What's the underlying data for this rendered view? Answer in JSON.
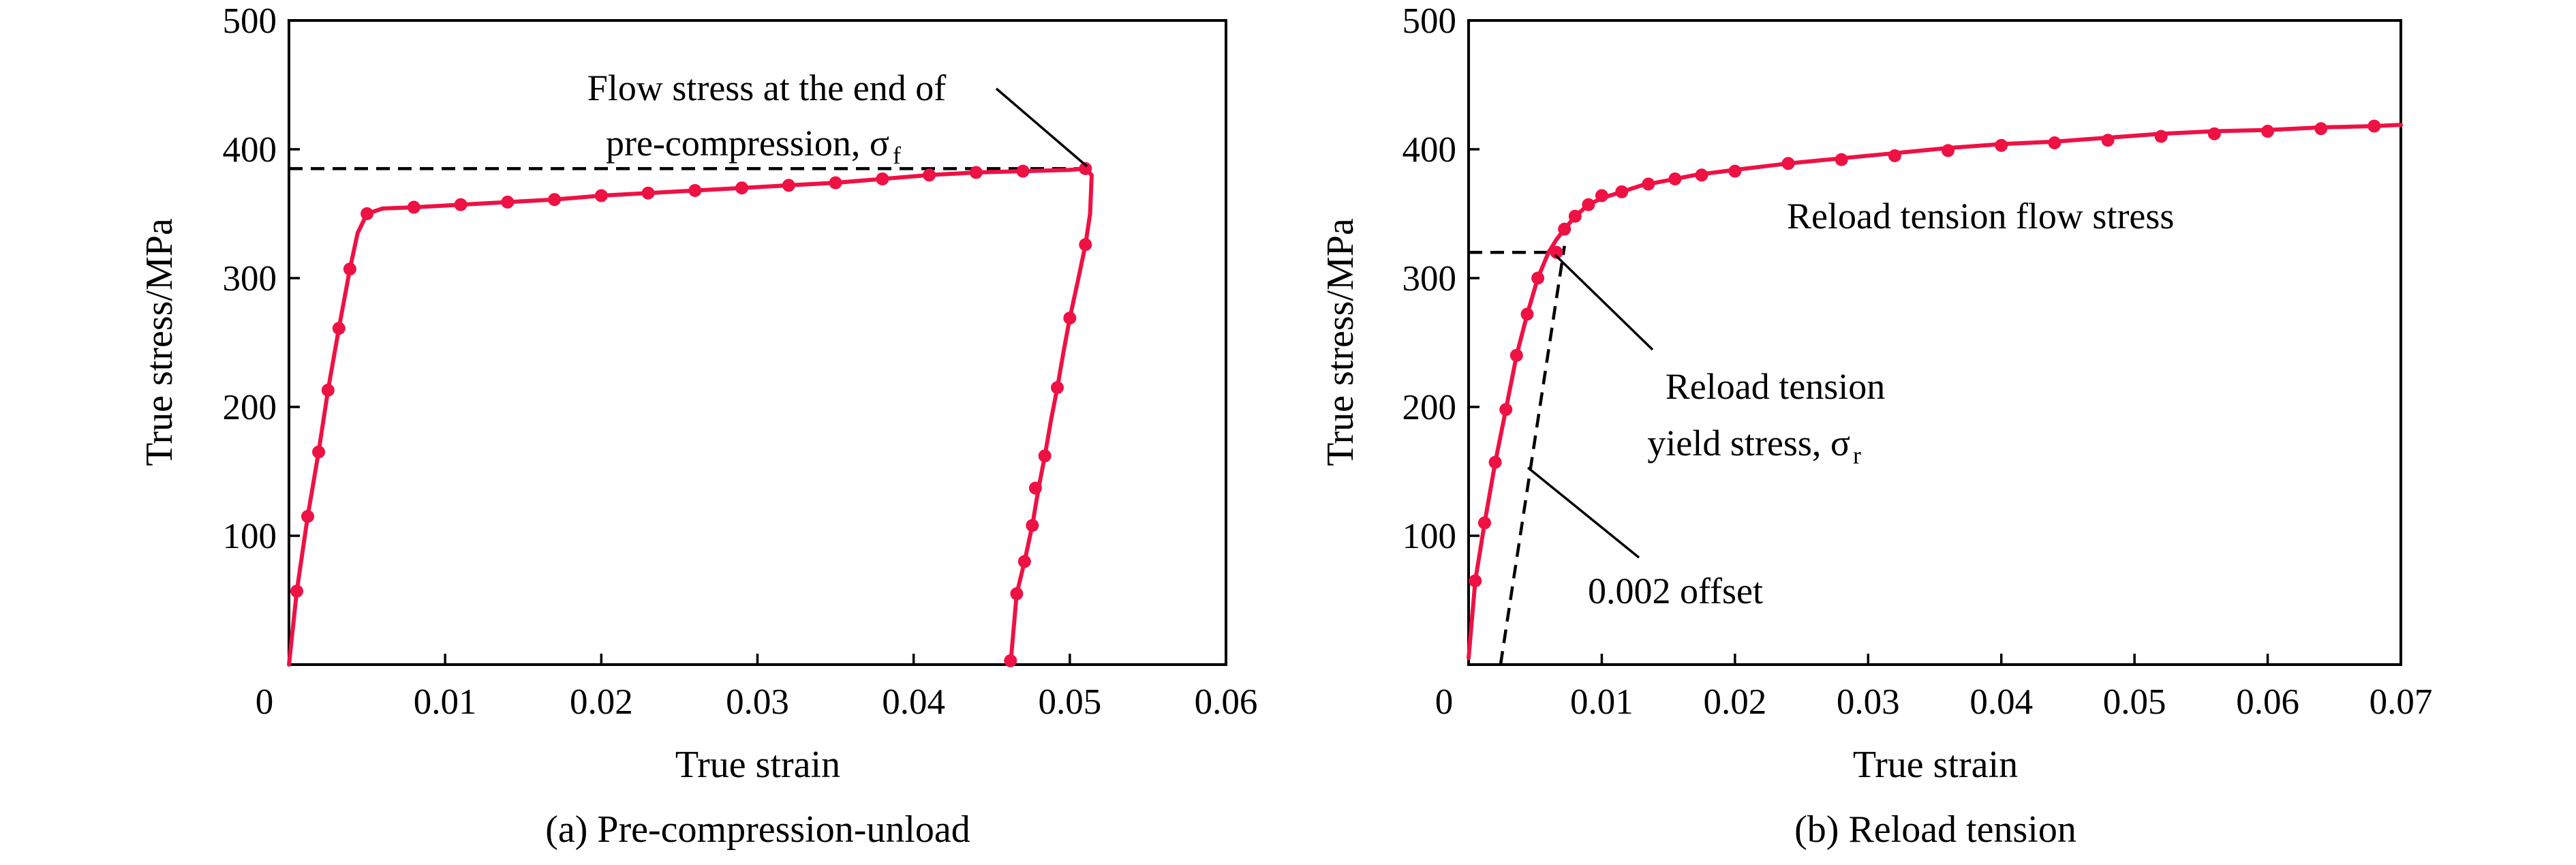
{
  "colors": {
    "curve": "#ee1144",
    "marker": "#ee1144",
    "axis": "#000000",
    "guide": "#000000"
  },
  "chart_data": [
    {
      "type": "line",
      "caption": "(a) Pre-compression-unload",
      "xlabel": "True strain",
      "ylabel": "True stress/MPa",
      "xlim": [
        0,
        0.06
      ],
      "ylim": [
        0,
        500
      ],
      "xticks": [
        "0",
        "0.01",
        "0.02",
        "0.03",
        "0.04",
        "0.05",
        "0.06"
      ],
      "yticks": [
        "100",
        "200",
        "300",
        "400",
        "500"
      ],
      "grid": false,
      "series": [
        {
          "x": [
            0,
            0.0005,
            0.0012,
            0.0019,
            0.0025,
            0.0032,
            0.0039,
            0.0044,
            0.005,
            0.006,
            0.008,
            0.011,
            0.014,
            0.017,
            0.02,
            0.023,
            0.026,
            0.029,
            0.032,
            0.035,
            0.038,
            0.041,
            0.044,
            0.047,
            0.05,
            0.051,
            0.0514,
            0.0513,
            0.051,
            0.0505,
            0.05,
            0.0496,
            0.0492,
            0.0488,
            0.0484,
            0.048,
            0.0476,
            0.0471,
            0.0466,
            0.0462
          ],
          "y": [
            0,
            57,
            115,
            165,
            213,
            261,
            307,
            335,
            350,
            354,
            355,
            357,
            359,
            361,
            364,
            366,
            368,
            370,
            372,
            374,
            377,
            380,
            382,
            383,
            384,
            385,
            380,
            350,
            326,
            297,
            269,
            243,
            215,
            190,
            162,
            137,
            108,
            80,
            55,
            0
          ],
          "markers": [
            [
              0.0005,
              57
            ],
            [
              0.0012,
              115
            ],
            [
              0.0019,
              165
            ],
            [
              0.0025,
              213
            ],
            [
              0.0032,
              261
            ],
            [
              0.0039,
              307
            ],
            [
              0.005,
              350
            ],
            [
              0.008,
              355
            ],
            [
              0.011,
              357
            ],
            [
              0.014,
              359
            ],
            [
              0.017,
              361
            ],
            [
              0.02,
              364
            ],
            [
              0.023,
              366
            ],
            [
              0.026,
              368
            ],
            [
              0.029,
              370
            ],
            [
              0.032,
              372
            ],
            [
              0.035,
              374
            ],
            [
              0.038,
              377
            ],
            [
              0.041,
              380
            ],
            [
              0.044,
              382
            ],
            [
              0.047,
              383
            ],
            [
              0.051,
              385
            ],
            [
              0.051,
              326
            ],
            [
              0.05,
              269
            ],
            [
              0.0492,
              215
            ],
            [
              0.0484,
              162
            ],
            [
              0.0478,
              137
            ],
            [
              0.0476,
              108
            ],
            [
              0.0471,
              80
            ],
            [
              0.0466,
              55
            ],
            [
              0.0462,
              3
            ]
          ]
        }
      ],
      "guides": [
        {
          "style": "dashed",
          "from": [
            0,
            385
          ],
          "to": [
            0.051,
            385
          ]
        }
      ],
      "annotations": [
        {
          "lines": [
            "Flow stress at the end of",
            "pre-compression, σ",
            "f"
          ],
          "pointer_to": [
            0.051,
            385
          ]
        }
      ]
    },
    {
      "type": "line",
      "caption": "(b) Reload tension",
      "xlabel": "True strain",
      "ylabel": "True stress/MPa",
      "xlim": [
        0,
        0.07
      ],
      "ylim": [
        0,
        500
      ],
      "xticks": [
        "0",
        "0.01",
        "0.02",
        "0.03",
        "0.04",
        "0.05",
        "0.06",
        "0.07"
      ],
      "yticks": [
        "100",
        "200",
        "300",
        "400",
        "500"
      ],
      "grid": false,
      "series": [
        {
          "x": [
            0,
            0.0005,
            0.0012,
            0.002,
            0.0028,
            0.0036,
            0.0044,
            0.0052,
            0.006,
            0.0066,
            0.0072,
            0.008,
            0.009,
            0.01,
            0.0115,
            0.013,
            0.015,
            0.017,
            0.02,
            0.024,
            0.028,
            0.032,
            0.036,
            0.04,
            0.044,
            0.048,
            0.052,
            0.056,
            0.06,
            0.064,
            0.068,
            0.07
          ],
          "y": [
            5,
            65,
            110,
            157,
            198,
            240,
            272,
            300,
            320,
            330,
            338,
            348,
            357,
            362,
            367,
            372,
            376,
            380,
            384,
            389,
            393,
            397,
            401,
            404,
            406,
            409,
            412,
            414,
            415,
            417,
            418,
            419
          ],
          "markers": [
            [
              0.0005,
              65
            ],
            [
              0.0012,
              110
            ],
            [
              0.002,
              157
            ],
            [
              0.0028,
              198
            ],
            [
              0.0036,
              240
            ],
            [
              0.0044,
              272
            ],
            [
              0.0052,
              300
            ],
            [
              0.0066,
              320
            ],
            [
              0.0072,
              338
            ],
            [
              0.008,
              348
            ],
            [
              0.009,
              357
            ],
            [
              0.01,
              364
            ],
            [
              0.0115,
              367
            ],
            [
              0.0135,
              373
            ],
            [
              0.0155,
              377
            ],
            [
              0.0175,
              380
            ],
            [
              0.02,
              383
            ],
            [
              0.024,
              389
            ],
            [
              0.028,
              392
            ],
            [
              0.032,
              395
            ],
            [
              0.036,
              399
            ],
            [
              0.04,
              403
            ],
            [
              0.044,
              405
            ],
            [
              0.048,
              407
            ],
            [
              0.052,
              410
            ],
            [
              0.056,
              412
            ],
            [
              0.06,
              414
            ],
            [
              0.064,
              416
            ],
            [
              0.068,
              418
            ]
          ]
        }
      ],
      "guides": [
        {
          "style": "dashed",
          "from": [
            0,
            320
          ],
          "to": [
            0.0066,
            320
          ]
        },
        {
          "style": "dashed",
          "from": [
            0.0024,
            0
          ],
          "to": [
            0.0072,
            325
          ]
        }
      ],
      "annotations": [
        {
          "text": "Reload tension flow stress"
        },
        {
          "lines": [
            "Reload tension",
            "yield stress, σ",
            "r"
          ],
          "pointer_to": [
            0.0066,
            320
          ]
        },
        {
          "text": "0.002 offset",
          "pointer_to": [
            0.0045,
            165
          ]
        }
      ]
    }
  ]
}
